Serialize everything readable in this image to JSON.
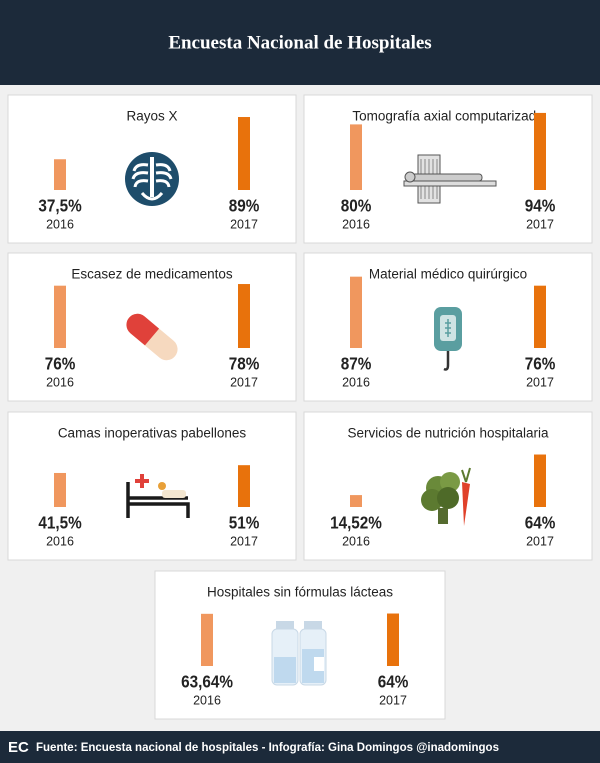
{
  "header": {
    "title": "Encuesta Nacional de Hospitales"
  },
  "footer": {
    "logo": "EC",
    "text": "Fuente: Encuesta nacional de hospitales - Infografía: Gina Domingos @inadomingos"
  },
  "chart_data": [
    {
      "type": "bar",
      "title": "Rayos X",
      "categories": [
        "2016",
        "2017"
      ],
      "values": [
        37.5,
        89
      ],
      "value_labels": [
        "37,5%",
        "89%"
      ],
      "colors": [
        "#f0975e",
        "#e8720c"
      ],
      "ylim": [
        0,
        100
      ]
    },
    {
      "type": "bar",
      "title": "Tomografía axial computarizada",
      "categories": [
        "2016",
        "2017"
      ],
      "values": [
        80,
        94
      ],
      "value_labels": [
        "80%",
        "94%"
      ],
      "colors": [
        "#f0975e",
        "#e8720c"
      ],
      "ylim": [
        0,
        100
      ]
    },
    {
      "type": "bar",
      "title": "Escasez de medicamentos",
      "categories": [
        "2016",
        "2017"
      ],
      "values": [
        76,
        78
      ],
      "value_labels": [
        "76%",
        "78%"
      ],
      "colors": [
        "#f0975e",
        "#e8720c"
      ],
      "ylim": [
        0,
        100
      ]
    },
    {
      "type": "bar",
      "title": "Material médico quirúrgico",
      "categories": [
        "2016",
        "2017"
      ],
      "values": [
        87,
        76
      ],
      "value_labels": [
        "87%",
        "76%"
      ],
      "colors": [
        "#f0975e",
        "#e8720c"
      ],
      "ylim": [
        0,
        100
      ]
    },
    {
      "type": "bar",
      "title": "Camas inoperativas pabellones",
      "categories": [
        "2016",
        "2017"
      ],
      "values": [
        41.5,
        51
      ],
      "value_labels": [
        "41,5%",
        "51%"
      ],
      "colors": [
        "#f0975e",
        "#e8720c"
      ],
      "ylim": [
        0,
        100
      ]
    },
    {
      "type": "bar",
      "title": "Servicios de nutrición hospitalaria",
      "categories": [
        "2016",
        "2017"
      ],
      "values": [
        14.52,
        64
      ],
      "value_labels": [
        "14,52%",
        "64%"
      ],
      "colors": [
        "#f0975e",
        "#e8720c"
      ],
      "ylim": [
        0,
        100
      ]
    },
    {
      "type": "bar",
      "title": "Hospitales sin fórmulas lácteas",
      "categories": [
        "2016",
        "2017"
      ],
      "values": [
        63.64,
        64
      ],
      "value_labels": [
        "63,64%",
        "64%"
      ],
      "colors": [
        "#f0975e",
        "#e8720c"
      ],
      "ylim": [
        0,
        100
      ]
    }
  ]
}
